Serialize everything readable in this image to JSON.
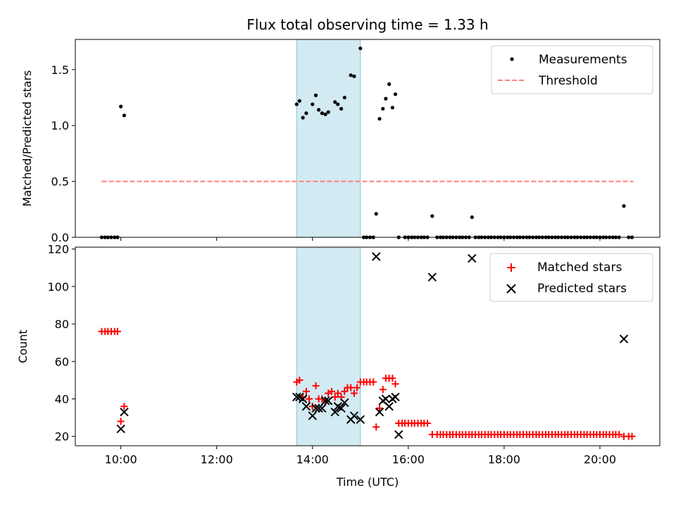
{
  "colors": {
    "measurement": "#000000",
    "threshold": "#ff7f7f",
    "matched": "#ff0000",
    "predicted": "#000000",
    "highlight": "#add8e6"
  },
  "chart_data": [
    {
      "type": "scatter",
      "title": "Flux total observing time = 1.33 h",
      "xlabel": "",
      "ylabel": "Matched/Predicted stars",
      "xlim": [
        9.05,
        21.25
      ],
      "ylim": [
        0.0,
        1.77
      ],
      "yticks": [
        0.0,
        0.5,
        1.0,
        1.5
      ],
      "ytick_labels": [
        "0.0",
        "0.5",
        "1.0",
        "1.5"
      ],
      "highlight_span": [
        13.67,
        15.0
      ],
      "threshold": {
        "value": 0.5,
        "x_range": [
          9.6,
          20.7
        ],
        "label": "Threshold"
      },
      "series": [
        {
          "name": "Measurements",
          "x": [
            9.6,
            9.67,
            9.73,
            9.8,
            9.87,
            9.93,
            10.0,
            10.07,
            13.67,
            13.73,
            13.8,
            13.87,
            14.0,
            14.07,
            14.13,
            14.2,
            14.27,
            14.33,
            14.47,
            14.53,
            14.6,
            14.67,
            14.8,
            14.87,
            15.0,
            15.07,
            15.13,
            15.2,
            15.27,
            15.33,
            15.4,
            15.47,
            15.53,
            15.6,
            15.67,
            15.73,
            15.8,
            15.93,
            16.0,
            16.07,
            16.13,
            16.2,
            16.27,
            16.33,
            16.4,
            16.5,
            16.6,
            16.67,
            16.73,
            16.8,
            16.87,
            16.93,
            17.0,
            17.07,
            17.13,
            17.2,
            17.27,
            17.33,
            17.4,
            17.47,
            17.53,
            17.6,
            17.67,
            17.73,
            17.8,
            17.87,
            17.93,
            18.0,
            18.07,
            18.13,
            18.2,
            18.27,
            18.33,
            18.4,
            18.47,
            18.53,
            18.6,
            18.67,
            18.73,
            18.8,
            18.87,
            18.93,
            19.0,
            19.07,
            19.13,
            19.2,
            19.27,
            19.33,
            19.4,
            19.47,
            19.53,
            19.6,
            19.67,
            19.73,
            19.8,
            19.87,
            19.93,
            20.0,
            20.07,
            20.13,
            20.2,
            20.27,
            20.33,
            20.4,
            20.5,
            20.6,
            20.67
          ],
          "values": [
            0,
            0,
            0,
            0,
            0,
            0,
            1.17,
            1.09,
            1.19,
            1.22,
            1.07,
            1.11,
            1.19,
            1.27,
            1.14,
            1.11,
            1.1,
            1.12,
            1.21,
            1.19,
            1.15,
            1.25,
            1.45,
            1.44,
            1.69,
            0,
            0,
            0,
            0,
            0.21,
            1.06,
            1.15,
            1.24,
            1.37,
            1.16,
            1.28,
            0,
            0,
            0,
            0,
            0,
            0,
            0,
            0,
            0,
            0.19,
            0,
            0,
            0,
            0,
            0,
            0,
            0,
            0,
            0,
            0,
            0,
            0.18,
            0,
            0,
            0,
            0,
            0,
            0,
            0,
            0,
            0,
            0,
            0,
            0,
            0,
            0,
            0,
            0,
            0,
            0,
            0,
            0,
            0,
            0,
            0,
            0,
            0,
            0,
            0,
            0,
            0,
            0,
            0,
            0,
            0,
            0,
            0,
            0,
            0,
            0,
            0,
            0,
            0,
            0,
            0,
            0,
            0,
            0,
            0.28,
            0,
            0
          ]
        }
      ],
      "legend": {
        "placement": "top-right",
        "entries": [
          "Measurements",
          "Threshold"
        ]
      }
    },
    {
      "type": "scatter",
      "title": "",
      "xlabel": "Time (UTC)",
      "ylabel": "Count",
      "xlim": [
        9.05,
        21.25
      ],
      "ylim": [
        15,
        121
      ],
      "yticks": [
        20,
        40,
        60,
        80,
        100,
        120
      ],
      "ytick_labels": [
        "20",
        "40",
        "60",
        "80",
        "100",
        "120"
      ],
      "xticks": [
        10,
        12,
        14,
        16,
        18,
        20
      ],
      "xtick_labels": [
        "10:00",
        "12:00",
        "14:00",
        "16:00",
        "18:00",
        "20:00"
      ],
      "highlight_span": [
        13.67,
        15.0
      ],
      "series": [
        {
          "name": "Matched stars",
          "marker": "plus",
          "x": [
            9.6,
            9.67,
            9.73,
            9.8,
            9.87,
            9.93,
            10.0,
            10.07,
            13.67,
            13.73,
            13.8,
            13.87,
            13.93,
            14.0,
            14.07,
            14.13,
            14.2,
            14.27,
            14.33,
            14.4,
            14.47,
            14.53,
            14.6,
            14.67,
            14.73,
            14.8,
            14.87,
            14.93,
            15.0,
            15.07,
            15.13,
            15.2,
            15.27,
            15.33,
            15.4,
            15.47,
            15.53,
            15.6,
            15.67,
            15.73,
            15.8,
            15.87,
            15.93,
            16.0,
            16.07,
            16.13,
            16.2,
            16.27,
            16.33,
            16.4,
            16.5,
            16.6,
            16.67,
            16.73,
            16.8,
            16.87,
            16.93,
            17.0,
            17.07,
            17.13,
            17.2,
            17.27,
            17.33,
            17.4,
            17.47,
            17.53,
            17.6,
            17.67,
            17.73,
            17.8,
            17.87,
            17.93,
            18.0,
            18.07,
            18.13,
            18.2,
            18.27,
            18.33,
            18.4,
            18.47,
            18.53,
            18.6,
            18.67,
            18.73,
            18.8,
            18.87,
            18.93,
            19.0,
            19.07,
            19.13,
            19.2,
            19.27,
            19.33,
            19.4,
            19.47,
            19.53,
            19.6,
            19.67,
            19.73,
            19.8,
            19.87,
            19.93,
            20.0,
            20.07,
            20.13,
            20.2,
            20.27,
            20.33,
            20.4,
            20.5,
            20.6,
            20.67
          ],
          "values": [
            76,
            76,
            76,
            76,
            76,
            76,
            28,
            36,
            49,
            50,
            41,
            44,
            40,
            36,
            47,
            40,
            40,
            39,
            43,
            44,
            41,
            43,
            41,
            44,
            46,
            46,
            43,
            46,
            49,
            49,
            49,
            49,
            49,
            25,
            35,
            45,
            51,
            51,
            51,
            48,
            27,
            27,
            27,
            27,
            27,
            27,
            27,
            27,
            27,
            27,
            21,
            21,
            21,
            21,
            21,
            21,
            21,
            21,
            21,
            21,
            21,
            21,
            21,
            21,
            21,
            21,
            21,
            21,
            21,
            21,
            21,
            21,
            21,
            21,
            21,
            21,
            21,
            21,
            21,
            21,
            21,
            21,
            21,
            21,
            21,
            21,
            21,
            21,
            21,
            21,
            21,
            21,
            21,
            21,
            21,
            21,
            21,
            21,
            21,
            21,
            21,
            21,
            21,
            21,
            21,
            21,
            21,
            21,
            21,
            20,
            20,
            20
          ]
        },
        {
          "name": "Predicted stars",
          "marker": "x",
          "x": [
            10.0,
            10.07,
            13.67,
            13.73,
            13.8,
            13.87,
            14.0,
            14.07,
            14.13,
            14.2,
            14.27,
            14.33,
            14.47,
            14.53,
            14.6,
            14.67,
            14.8,
            14.87,
            15.0,
            15.33,
            15.4,
            15.47,
            15.53,
            15.6,
            15.67,
            15.73,
            15.8,
            16.5,
            17.33,
            20.5
          ],
          "values": [
            24,
            33,
            41,
            41,
            40,
            36,
            31,
            35,
            35,
            35,
            39,
            39,
            33,
            36,
            35,
            38,
            29,
            31,
            29,
            116,
            33,
            39,
            40,
            36,
            40,
            41,
            21,
            105,
            115,
            72
          ]
        }
      ],
      "legend": {
        "placement": "top-right",
        "entries": [
          "Matched stars",
          "Predicted stars"
        ]
      }
    }
  ]
}
